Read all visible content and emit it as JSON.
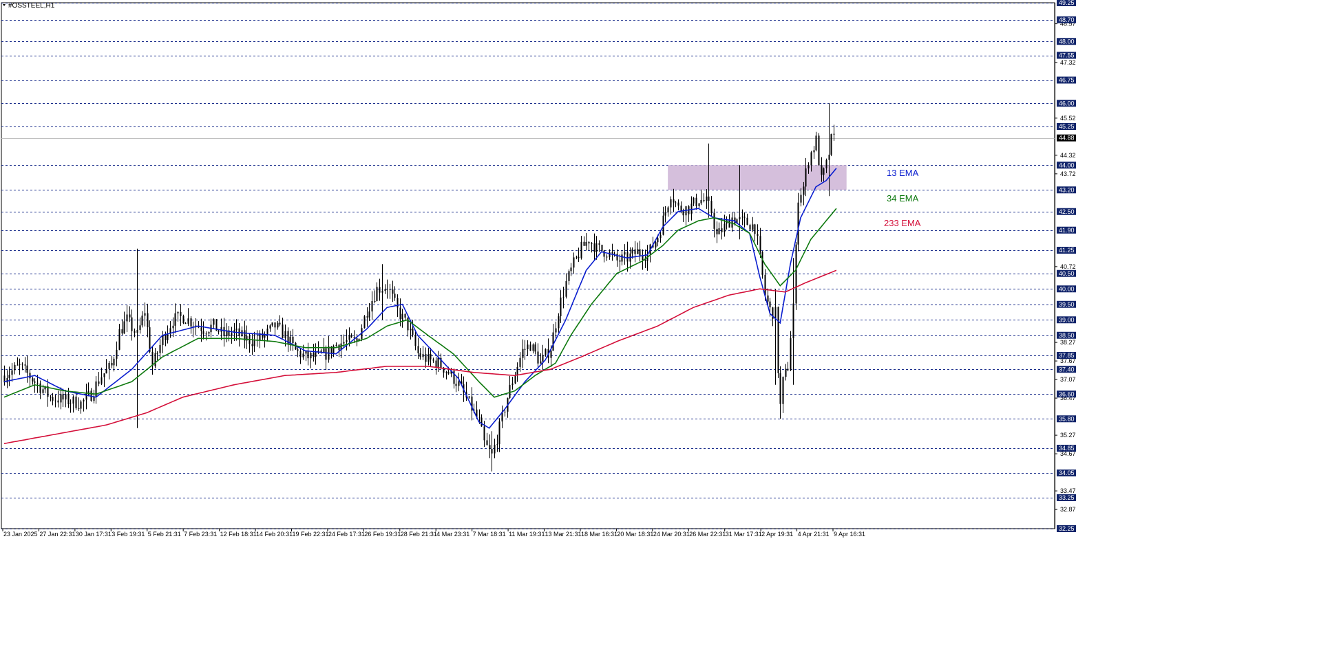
{
  "chart_data": {
    "type": "candlestick",
    "symbol": "#OSSTEEL,H1",
    "ylim": [
      32.25,
      49.25
    ],
    "current_price": 44.88,
    "level_labels": [
      "49.25",
      "48.70",
      "48.00",
      "47.55",
      "46.75",
      "46.00",
      "45.25",
      "44.00",
      "43.20",
      "42.50",
      "41.90",
      "41.25",
      "40.50",
      "40.00",
      "39.50",
      "39.00",
      "38.50",
      "37.85",
      "37.40",
      "36.60",
      "35.80",
      "34.85",
      "34.05",
      "33.25",
      "32.25"
    ],
    "minor_labels": [
      "48.57",
      "47.32",
      "45.52",
      "44.32",
      "43.72",
      "40.72",
      "38.27",
      "37.67",
      "37.07",
      "36.47",
      "35.27",
      "34.67",
      "33.47",
      "32.87"
    ],
    "x_labels": [
      "23 Jan 2025",
      "27 Jan 22:31",
      "30 Jan 17:31",
      "3 Feb 19:31",
      "5 Feb 21:31",
      "7 Feb 23:31",
      "12 Feb 18:31",
      "14 Feb 20:31",
      "19 Feb 22:31",
      "24 Feb 17:31",
      "26 Feb 19:31",
      "28 Feb 21:31",
      "4 Mar 23:31",
      "7 Mar 18:31",
      "11 Mar 19:31",
      "13 Mar 21:31",
      "18 Mar 16:31",
      "20 Mar 18:31",
      "24 Mar 20:31",
      "26 Mar 22:31",
      "31 Mar 17:31",
      "2 Apr 19:31",
      "4 Apr 21:31",
      "9 Apr 16:31"
    ],
    "price_path": [
      [
        0,
        37.2
      ],
      [
        6,
        37.5
      ],
      [
        12,
        37.0
      ],
      [
        18,
        36.5
      ],
      [
        24,
        36.4
      ],
      [
        30,
        36.3
      ],
      [
        34,
        36.6
      ],
      [
        38,
        37.2
      ],
      [
        42,
        37.5
      ],
      [
        45,
        38.6
      ],
      [
        48,
        39.0
      ],
      [
        52,
        38.5
      ],
      [
        55,
        39.3
      ],
      [
        58,
        37.5
      ],
      [
        62,
        38.4
      ],
      [
        66,
        39.0
      ],
      [
        70,
        39.1
      ],
      [
        74,
        38.9
      ],
      [
        78,
        38.7
      ],
      [
        82,
        38.8
      ],
      [
        86,
        38.5
      ],
      [
        90,
        38.6
      ],
      [
        94,
        38.4
      ],
      [
        98,
        38.3
      ],
      [
        102,
        38.5
      ],
      [
        106,
        38.8
      ],
      [
        110,
        38.5
      ],
      [
        114,
        38.0
      ],
      [
        118,
        37.8
      ],
      [
        122,
        37.8
      ],
      [
        126,
        37.9
      ],
      [
        130,
        38.2
      ],
      [
        134,
        38.3
      ],
      [
        138,
        38.3
      ],
      [
        142,
        39.3
      ],
      [
        146,
        40.0
      ],
      [
        150,
        40.1
      ],
      [
        154,
        39.3
      ],
      [
        158,
        38.8
      ],
      [
        162,
        37.9
      ],
      [
        166,
        37.7
      ],
      [
        170,
        37.6
      ],
      [
        174,
        37.3
      ],
      [
        178,
        36.9
      ],
      [
        182,
        36.3
      ],
      [
        186,
        35.7
      ],
      [
        188,
        35.0
      ],
      [
        191,
        34.6
      ],
      [
        194,
        35.5
      ],
      [
        197,
        36.5
      ],
      [
        200,
        37.3
      ],
      [
        203,
        38.0
      ],
      [
        206,
        38.2
      ],
      [
        210,
        37.6
      ],
      [
        214,
        38.1
      ],
      [
        217,
        39.3
      ],
      [
        220,
        40.2
      ],
      [
        223,
        40.8
      ],
      [
        226,
        41.3
      ],
      [
        229,
        41.6
      ],
      [
        232,
        41.3
      ],
      [
        236,
        41.2
      ],
      [
        240,
        40.9
      ],
      [
        244,
        41.0
      ],
      [
        248,
        41.2
      ],
      [
        252,
        41.1
      ],
      [
        256,
        41.7
      ],
      [
        259,
        42.5
      ],
      [
        261,
        43.1
      ],
      [
        264,
        42.6
      ],
      [
        268,
        42.6
      ],
      [
        272,
        42.9
      ],
      [
        275,
        42.8
      ],
      [
        277,
        42.5
      ],
      [
        279,
        41.7
      ],
      [
        282,
        42.0
      ],
      [
        285,
        42.3
      ],
      [
        288,
        42.2
      ],
      [
        292,
        42.1
      ],
      [
        294,
        42.0
      ],
      [
        296,
        41.0
      ],
      [
        298,
        39.8
      ],
      [
        300,
        39.3
      ],
      [
        302,
        39.2
      ],
      [
        303,
        37.4
      ],
      [
        304,
        36.2
      ],
      [
        305,
        37.0
      ],
      [
        307,
        37.5
      ],
      [
        309,
        39.5
      ],
      [
        311,
        43.0
      ],
      [
        313,
        43.3
      ],
      [
        315,
        44.2
      ],
      [
        318,
        44.8
      ],
      [
        320,
        43.5
      ],
      [
        322,
        44.0
      ],
      [
        324,
        44.8
      ],
      [
        326,
        44.9
      ]
    ],
    "series": [
      {
        "name": "13 EMA",
        "color": "#0a1ecf",
        "points": [
          [
            0,
            37.0
          ],
          [
            12,
            37.2
          ],
          [
            24,
            36.7
          ],
          [
            36,
            36.5
          ],
          [
            50,
            37.4
          ],
          [
            62,
            38.5
          ],
          [
            76,
            38.8
          ],
          [
            90,
            38.6
          ],
          [
            106,
            38.5
          ],
          [
            118,
            38.0
          ],
          [
            130,
            37.9
          ],
          [
            142,
            38.7
          ],
          [
            150,
            39.4
          ],
          [
            156,
            39.5
          ],
          [
            162,
            38.5
          ],
          [
            170,
            37.8
          ],
          [
            178,
            37.1
          ],
          [
            186,
            35.7
          ],
          [
            190,
            35.5
          ],
          [
            196,
            36.1
          ],
          [
            204,
            37.0
          ],
          [
            212,
            37.7
          ],
          [
            220,
            39.0
          ],
          [
            228,
            40.6
          ],
          [
            234,
            41.2
          ],
          [
            244,
            41.0
          ],
          [
            252,
            41.1
          ],
          [
            258,
            42.0
          ],
          [
            264,
            42.5
          ],
          [
            272,
            42.6
          ],
          [
            278,
            42.3
          ],
          [
            286,
            42.2
          ],
          [
            292,
            41.8
          ],
          [
            296,
            40.4
          ],
          [
            300,
            39.2
          ],
          [
            304,
            38.9
          ],
          [
            308,
            40.8
          ],
          [
            312,
            42.3
          ],
          [
            318,
            43.3
          ],
          [
            322,
            43.5
          ],
          [
            326,
            43.9
          ]
        ]
      },
      {
        "name": "34 EMA",
        "color": "#0f7a0f",
        "points": [
          [
            0,
            36.5
          ],
          [
            12,
            36.9
          ],
          [
            24,
            36.7
          ],
          [
            36,
            36.6
          ],
          [
            50,
            37.0
          ],
          [
            62,
            37.8
          ],
          [
            76,
            38.4
          ],
          [
            90,
            38.4
          ],
          [
            106,
            38.3
          ],
          [
            118,
            38.1
          ],
          [
            130,
            38.1
          ],
          [
            142,
            38.4
          ],
          [
            150,
            38.8
          ],
          [
            158,
            39.0
          ],
          [
            166,
            38.5
          ],
          [
            176,
            37.9
          ],
          [
            186,
            37.0
          ],
          [
            192,
            36.5
          ],
          [
            200,
            36.7
          ],
          [
            208,
            37.2
          ],
          [
            216,
            37.6
          ],
          [
            222,
            38.5
          ],
          [
            230,
            39.5
          ],
          [
            240,
            40.5
          ],
          [
            250,
            40.9
          ],
          [
            258,
            41.4
          ],
          [
            264,
            41.9
          ],
          [
            272,
            42.2
          ],
          [
            278,
            42.3
          ],
          [
            286,
            42.1
          ],
          [
            292,
            41.8
          ],
          [
            298,
            40.8
          ],
          [
            304,
            40.1
          ],
          [
            310,
            40.6
          ],
          [
            316,
            41.6
          ],
          [
            322,
            42.2
          ],
          [
            326,
            42.6
          ]
        ]
      },
      {
        "name": "233 EMA",
        "color": "#d4103a",
        "points": [
          [
            0,
            35.0
          ],
          [
            20,
            35.3
          ],
          [
            40,
            35.6
          ],
          [
            56,
            36.0
          ],
          [
            70,
            36.5
          ],
          [
            90,
            36.9
          ],
          [
            110,
            37.2
          ],
          [
            130,
            37.3
          ],
          [
            150,
            37.5
          ],
          [
            166,
            37.5
          ],
          [
            184,
            37.3
          ],
          [
            200,
            37.2
          ],
          [
            214,
            37.4
          ],
          [
            226,
            37.8
          ],
          [
            240,
            38.3
          ],
          [
            256,
            38.8
          ],
          [
            270,
            39.4
          ],
          [
            284,
            39.8
          ],
          [
            296,
            40.0
          ],
          [
            306,
            39.9
          ],
          [
            314,
            40.2
          ],
          [
            326,
            40.6
          ]
        ]
      }
    ],
    "resistance_zone": {
      "from": 43.2,
      "to": 44.0,
      "start": 260,
      "end": 330,
      "color": "#d5bfdc"
    },
    "colors": {
      "candles": "#000000",
      "grid": "#1c2f8c",
      "level_badge": "#12256b",
      "current_badge": "#000000"
    }
  },
  "legend": {
    "ema13": "13 EMA",
    "ema34": "34 EMA",
    "ema233": "233 EMA"
  }
}
